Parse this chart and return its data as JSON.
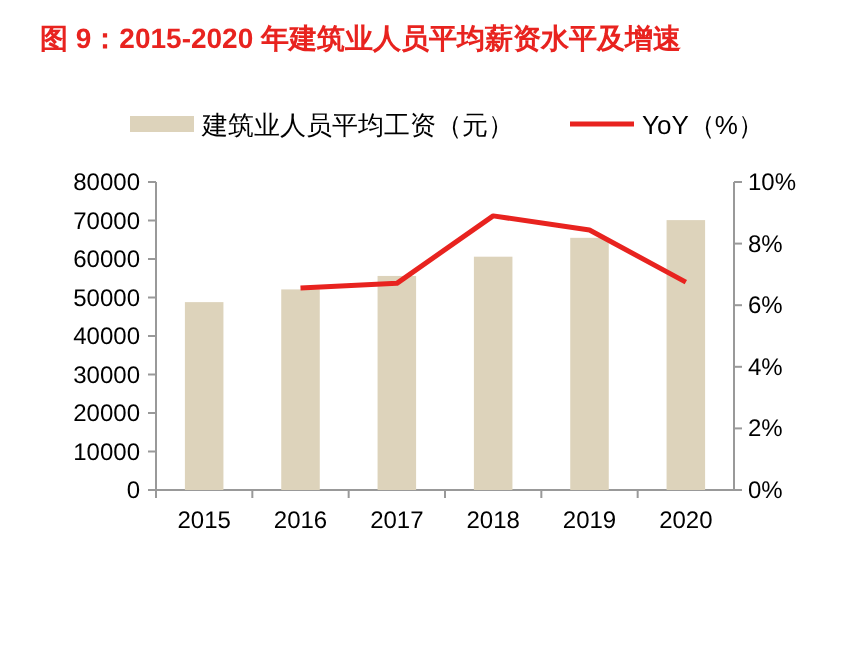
{
  "chart_data": {
    "type": "bar",
    "title": "图 9：2015-2020 年建筑业人员平均薪资水平及增速",
    "categories": [
      "2015",
      "2016",
      "2017",
      "2018",
      "2019",
      "2020"
    ],
    "series": [
      {
        "name": "建筑业人员平均工资（元）",
        "color": "#ddd3bb",
        "values": [
          48800,
          52100,
          55600,
          60600,
          65500,
          70100
        ]
      },
      {
        "name": "YoY（%）",
        "type": "line",
        "axis": "y2",
        "color": "#e8231f",
        "values": [
          null,
          6.56,
          6.71,
          8.9,
          8.44,
          6.75
        ]
      }
    ],
    "ylim": [
      0,
      80000
    ],
    "yticks": [
      0,
      10000,
      20000,
      30000,
      40000,
      50000,
      60000,
      70000,
      80000
    ],
    "y2lim": [
      0,
      10
    ],
    "y2ticks": [
      {
        "value": 0,
        "label": "0%"
      },
      {
        "value": 2,
        "label": "2%"
      },
      {
        "value": 4,
        "label": "4%"
      },
      {
        "value": 6,
        "label": "6%"
      },
      {
        "value": 8,
        "label": "8%"
      },
      {
        "value": 10,
        "label": "10%"
      }
    ],
    "legend": "top",
    "grid": false
  }
}
